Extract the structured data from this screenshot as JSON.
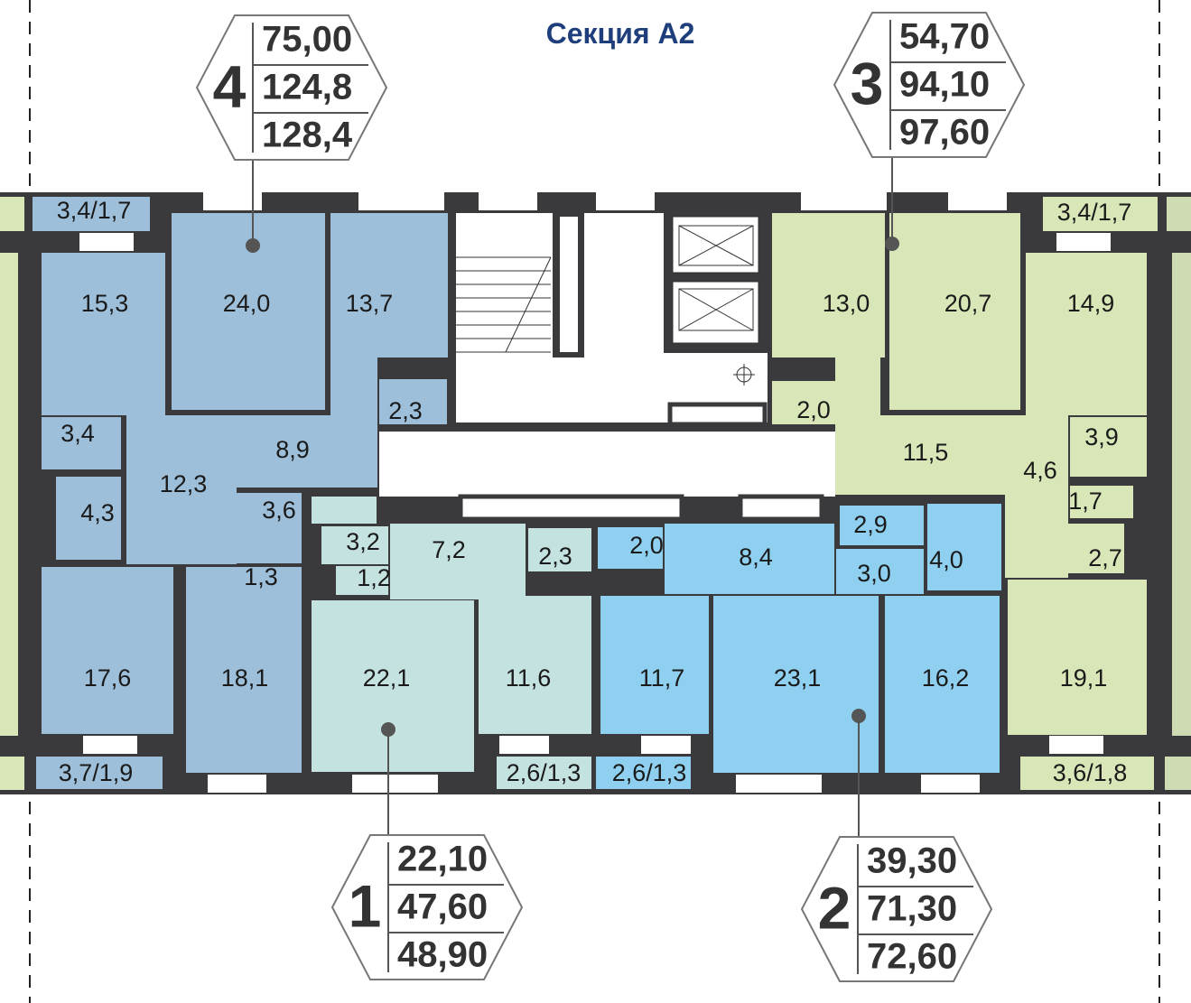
{
  "title": "Секция А2",
  "colors": {
    "apt1": "#c4e2df",
    "apt2": "#8fd0f1",
    "apt3": "#d9e6b8",
    "apt4": "#9dbfd9",
    "wall": "#3a3a3c",
    "title": "#1f3f7c"
  },
  "apartments": [
    {
      "number": "4",
      "values": [
        "75,00",
        "124,8",
        "128,4"
      ]
    },
    {
      "number": "3",
      "values": [
        "54,70",
        "94,10",
        "97,60"
      ]
    },
    {
      "number": "1",
      "values": [
        "22,10",
        "47,60",
        "48,90"
      ]
    },
    {
      "number": "2",
      "values": [
        "39,30",
        "71,30",
        "72,60"
      ]
    }
  ],
  "rooms": {
    "apt4": [
      "3,4/1,7",
      "15,3",
      "24,0",
      "13,7",
      "2,3",
      "8,9",
      "12,3",
      "3,4",
      "4,3",
      "3,6",
      "1,3",
      "17,6",
      "18,1",
      "3,7/1,9"
    ],
    "apt1": [
      "3,2",
      "1,2",
      "7,2",
      "2,3",
      "22,1",
      "11,6",
      "2,6/1,3"
    ],
    "apt2": [
      "2,0",
      "8,4",
      "2,9",
      "3,0",
      "4,0",
      "11,7",
      "23,1",
      "16,2",
      "2,6/1,3"
    ],
    "apt3": [
      "13,0",
      "2,0",
      "20,7",
      "14,9",
      "11,5",
      "4,6",
      "3,9",
      "1,7",
      "2,7",
      "19,1",
      "3,4/1,7",
      "3,6/1,8"
    ]
  }
}
